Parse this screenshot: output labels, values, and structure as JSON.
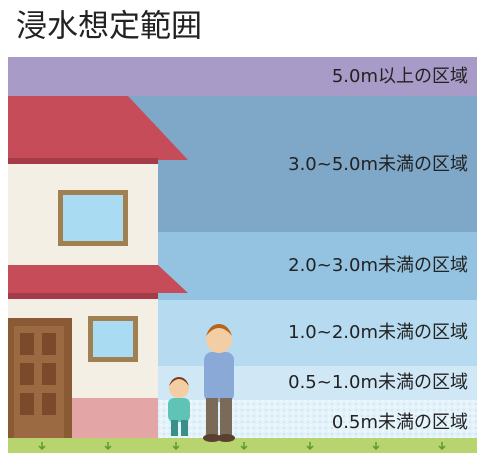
{
  "title": "浸水想定範囲",
  "zones": [
    {
      "label": "5.0m以上の区域"
    },
    {
      "label": "3.0~5.0m未満の区域"
    },
    {
      "label": "2.0~3.0m未満の区域"
    },
    {
      "label": "1.0~2.0m未満の区域"
    },
    {
      "label": "0.5~1.0m未満の区域"
    },
    {
      "label": "0.5m未満の区域"
    }
  ]
}
